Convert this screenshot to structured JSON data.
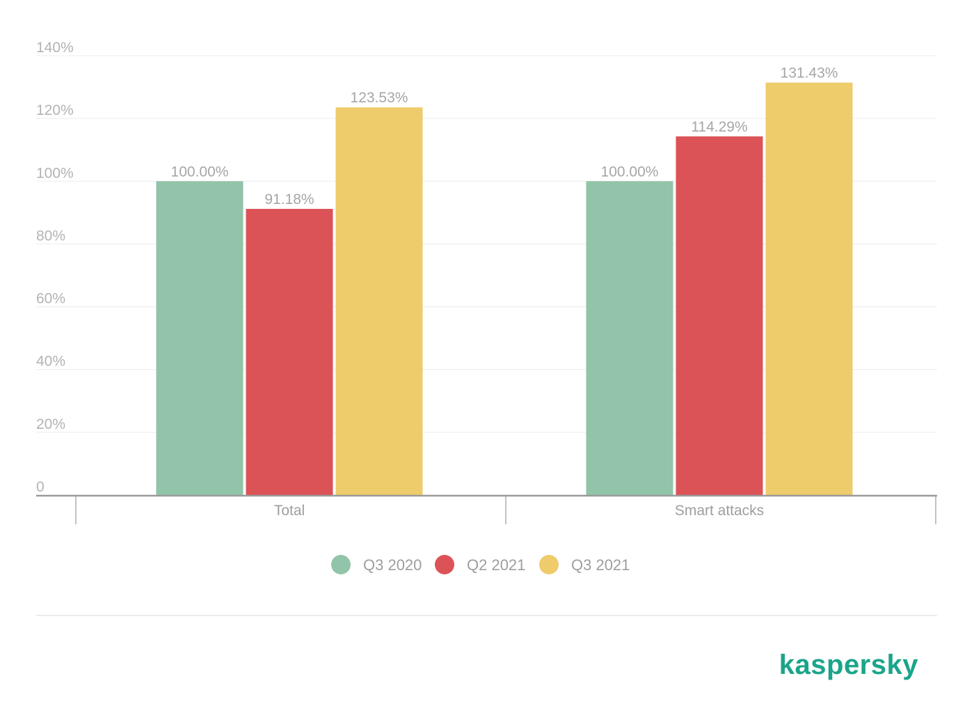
{
  "chart_data": {
    "type": "bar",
    "title": "",
    "xlabel": "",
    "ylabel": "",
    "ylim": [
      0,
      140
    ],
    "yticks": [
      0,
      20,
      40,
      60,
      80,
      100,
      120,
      140
    ],
    "ytick_labels": [
      "0",
      "20%",
      "40%",
      "60%",
      "80%",
      "100%",
      "120%",
      "140%"
    ],
    "grid": true,
    "legend_position": "bottom-center",
    "categories": [
      "Total",
      "Smart attacks"
    ],
    "series": [
      {
        "name": "Q3 2020",
        "color": "#91c4a8",
        "values": [
          100.0,
          100.0
        ],
        "labels": [
          "100.00%",
          "100.00%"
        ]
      },
      {
        "name": "Q2 2021",
        "color": "#dc5357",
        "values": [
          91.18,
          114.29
        ],
        "labels": [
          "91.18%",
          "114.29%"
        ]
      },
      {
        "name": "Q3 2021",
        "color": "#eecb6b",
        "values": [
          123.53,
          131.43
        ],
        "labels": [
          "123.53%",
          "131.43%"
        ]
      }
    ]
  },
  "brand": {
    "text": "kaspersky",
    "color": "#1ba58a"
  }
}
